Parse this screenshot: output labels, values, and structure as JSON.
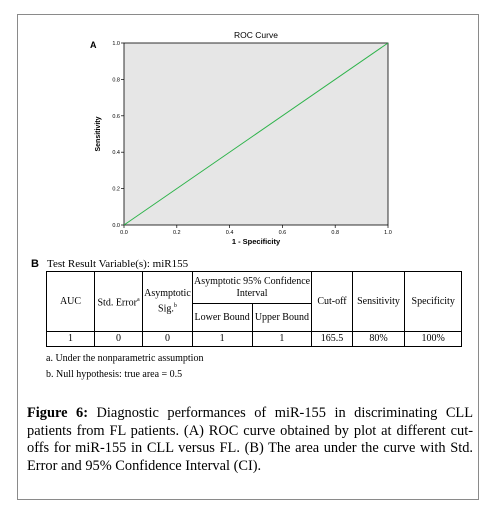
{
  "panel_a_label": "A",
  "panel_b_label": "B",
  "chart_data": {
    "type": "line",
    "title": "ROC Curve",
    "xlabel": "1 - Specificity",
    "ylabel": "Sensitivity",
    "xlim": [
      0,
      1
    ],
    "ylim": [
      0,
      1
    ],
    "xticks": [
      "0.0",
      "0.2",
      "0.4",
      "0.6",
      "0.8",
      "1.0"
    ],
    "yticks": [
      "0.0",
      "0.2",
      "0.4",
      "0.6",
      "0.8",
      "1.0"
    ],
    "grid": false,
    "background_color": "#e6e6e6",
    "line_color": "#2db34a",
    "series": [
      {
        "x": [
          0,
          1
        ],
        "y": [
          0,
          1
        ]
      }
    ]
  },
  "table": {
    "caption": "Test Result Variable(s):  miR155",
    "headers": {
      "auc": "AUC",
      "std_error": "Std. Error",
      "std_error_sup": "a",
      "asymptotic_sig": "Asymptotic Sig.",
      "asymptotic_sig_sup": "b",
      "ci_group": "Asymptotic 95% Confidence Interval",
      "lower": "Lower Bound",
      "upper": "Upper Bound",
      "cutoff": "Cut-off",
      "sensitivity": "Sensitivity",
      "specificity": "Specificity"
    },
    "row": {
      "auc": "1",
      "std_error": "0",
      "asymptotic_sig": "0",
      "lower": "1",
      "upper": "1",
      "cutoff": "165.5",
      "sensitivity": "80%",
      "specificity": "100%"
    },
    "notes": [
      "a. Under the nonparametric assumption",
      "b. Null hypothesis: true area = 0.5"
    ]
  },
  "caption": {
    "label": "Figure 6:",
    "text": " Diagnostic performances of miR-155 in discriminating CLL patients from FL patients. (A) ROC curve obtained by plot at different cut-offs for miR-155 in CLL versus FL. (B) The area under the curve with Std. Error and 95% Confidence Interval (CI)."
  }
}
